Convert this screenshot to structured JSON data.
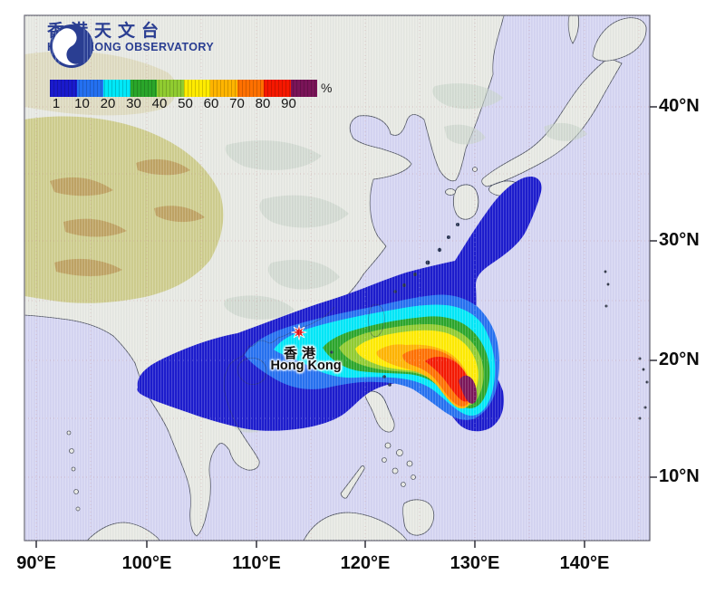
{
  "brand": {
    "name_zh": "香港天文台",
    "name_en": "HONG KONG OBSERVATORY",
    "color": "#2A3E92"
  },
  "legend": {
    "unit": "%",
    "tick_labels": [
      "1",
      "10",
      "20",
      "30",
      "40",
      "50",
      "60",
      "70",
      "80",
      "90"
    ],
    "band_colors": [
      "#1A1ACD",
      "#2470F0",
      "#00E8F8",
      "#2AA62A",
      "#90CC30",
      "#FFEB00",
      "#FFB400",
      "#FF7000",
      "#F51800",
      "#7A1458"
    ],
    "band_values_percent": [
      1,
      10,
      20,
      30,
      40,
      50,
      60,
      70,
      80,
      90
    ]
  },
  "marker": {
    "label_zh": "香港",
    "label_en": "Hong Kong",
    "color": "#E31010"
  },
  "axes": {
    "x_labels": [
      "90°E",
      "100°E",
      "110°E",
      "120°E",
      "130°E",
      "140°E"
    ],
    "y_labels": [
      "40°N",
      "30°N",
      "20°N",
      "10°N"
    ]
  },
  "map_colors": {
    "ocean": "#D5D5F2",
    "land": "#E7E9E3",
    "plateau": "#C9C87E",
    "coast": "#3C4452"
  }
}
